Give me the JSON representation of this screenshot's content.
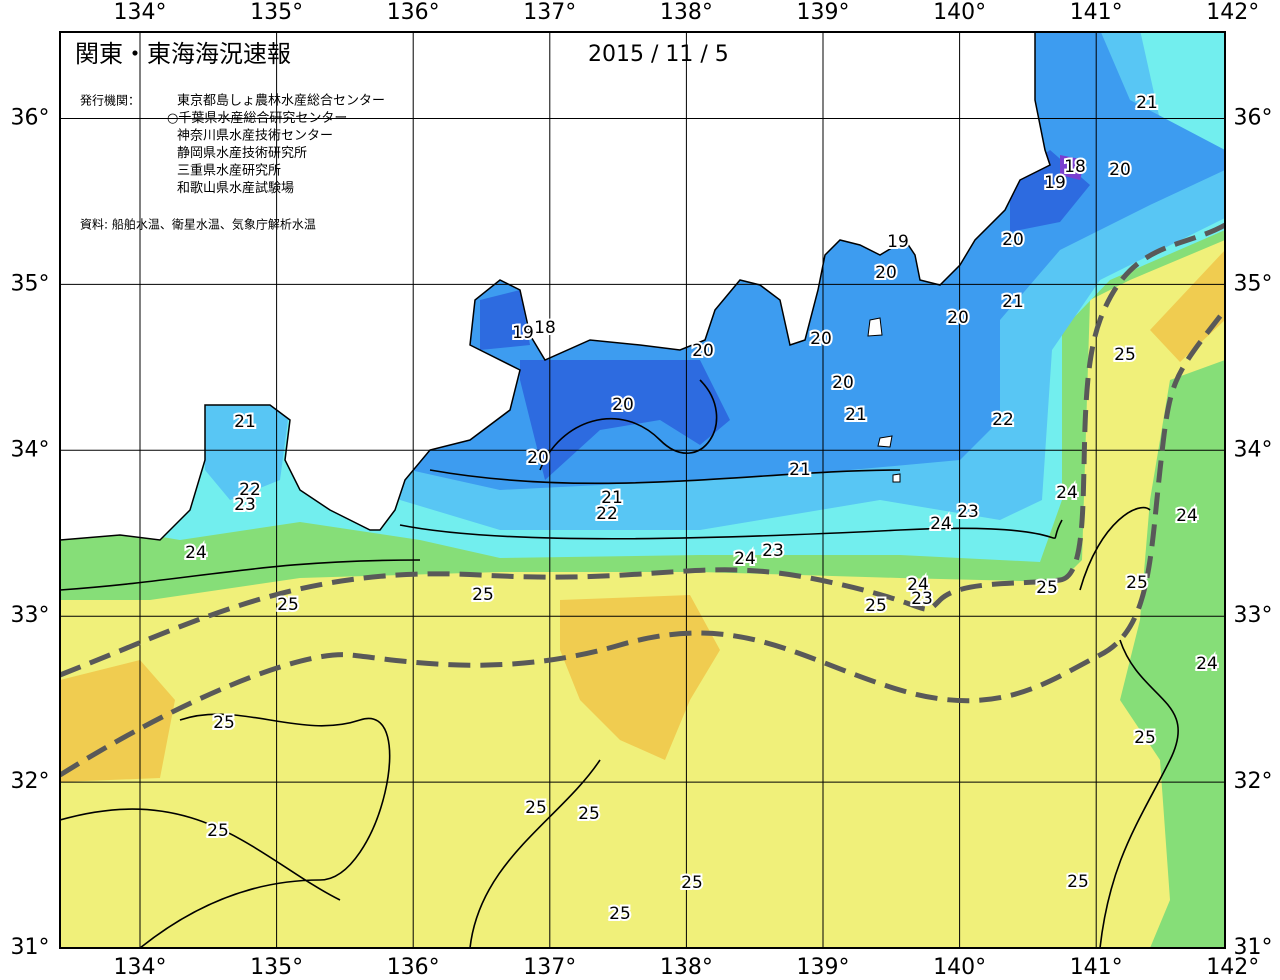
{
  "header": {
    "title": "関東・東海海況速報",
    "date": "2015 / 11 / 5",
    "issuer_label": "発行機関：",
    "issuers": [
      "東京都島しょ農林水産総合センター",
      "○千葉県水産総合研究センター",
      "神奈川県水産技術センター",
      "静岡県水産技術研究所",
      "三重県水産研究所",
      "和歌山県水産試験場"
    ],
    "source": "資料: 船舶水温、衛星水温、気象庁解析水温"
  },
  "lon_ticks": [
    {
      "value": 134,
      "label": "134°"
    },
    {
      "value": 135,
      "label": "135°"
    },
    {
      "value": 136,
      "label": "136°"
    },
    {
      "value": 137,
      "label": "137°"
    },
    {
      "value": 138,
      "label": "138°"
    },
    {
      "value": 139,
      "label": "139°"
    },
    {
      "value": 140,
      "label": "140°"
    },
    {
      "value": 141,
      "label": "141°"
    },
    {
      "value": 142,
      "label": "142°"
    }
  ],
  "lat_ticks": [
    {
      "value": 31,
      "label": "31°"
    },
    {
      "value": 32,
      "label": "32°"
    },
    {
      "value": 33,
      "label": "33°"
    },
    {
      "value": 34,
      "label": "34°"
    },
    {
      "value": 35,
      "label": "35°"
    },
    {
      "value": 36,
      "label": "36°"
    }
  ],
  "contour_labels": [
    21,
    18,
    19,
    20,
    19,
    20,
    20,
    21,
    20,
    25,
    19,
    18,
    20,
    20,
    20,
    21,
    20,
    21,
    22,
    20,
    21,
    22,
    23,
    24,
    21,
    22,
    24,
    23,
    24,
    23,
    24,
    24,
    25,
    24,
    23,
    25,
    25,
    25,
    25,
    24,
    25,
    25,
    25,
    25,
    25,
    25,
    25,
    25
  ]
}
